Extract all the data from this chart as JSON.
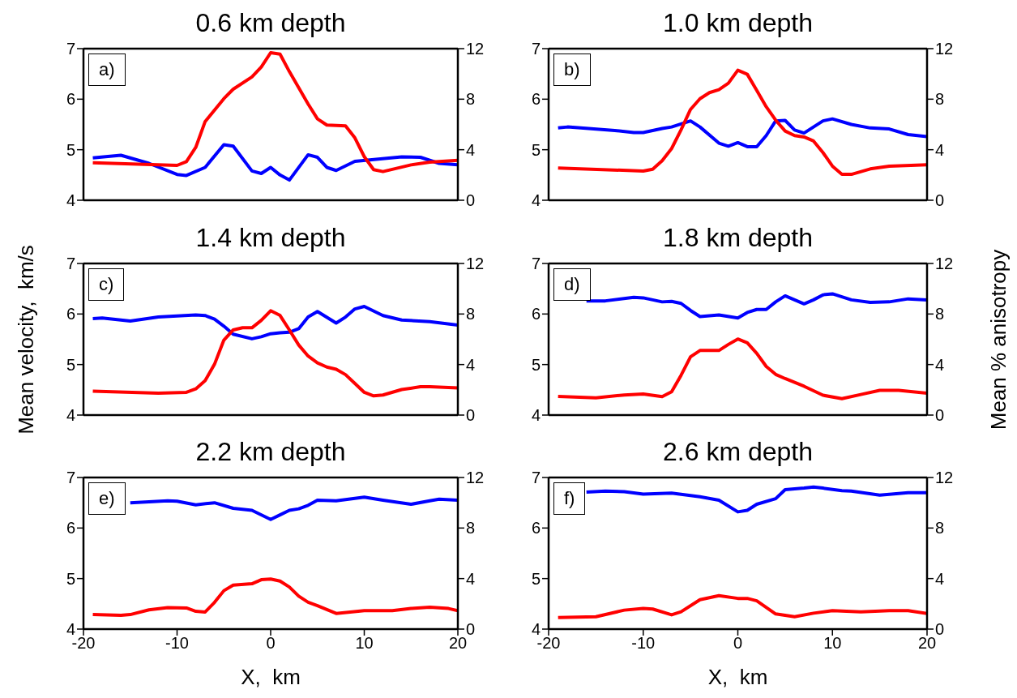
{
  "chart_data": [
    {
      "type": "line",
      "title": "0.6 km depth",
      "annotations": [
        "a)"
      ],
      "xlim": [
        -20,
        20
      ],
      "xticks": [
        -20,
        -10,
        0,
        10,
        20
      ],
      "ylim": [
        4,
        7
      ],
      "yticks": [
        4,
        5,
        6,
        7
      ],
      "y2lim": [
        0,
        12
      ],
      "y2ticks": [
        0,
        4,
        8,
        12
      ],
      "tick_labels": "y",
      "series": [
        {
          "color": "#0000ff",
          "x": [
            -19,
            -16,
            -13,
            -10,
            -9,
            -7,
            -5,
            -4,
            -2,
            -1,
            0,
            1,
            2,
            4,
            5,
            6,
            7,
            9,
            14,
            16,
            18,
            20
          ],
          "values": [
            4.84,
            4.89,
            4.73,
            4.51,
            4.49,
            4.65,
            5.1,
            5.07,
            4.58,
            4.53,
            4.65,
            4.5,
            4.4,
            4.9,
            4.85,
            4.65,
            4.59,
            4.77,
            4.86,
            4.85,
            4.73,
            4.7
          ]
        },
        {
          "color": "#ff0000",
          "axis": "y2",
          "x": [
            -19,
            -10,
            -9,
            -8,
            -7,
            -5,
            -4,
            -2,
            -1,
            0,
            1,
            2,
            4,
            5,
            6,
            8,
            9,
            10,
            11,
            12,
            15,
            17,
            20
          ],
          "values": [
            2.97,
            2.76,
            3.06,
            4.19,
            6.23,
            8.04,
            8.79,
            9.76,
            10.55,
            11.68,
            11.57,
            10.18,
            7.62,
            6.44,
            5.95,
            5.89,
            4.94,
            3.45,
            2.42,
            2.27,
            2.8,
            3.02,
            3.16
          ]
        }
      ]
    },
    {
      "type": "line",
      "title": "1.0 km depth",
      "annotations": [
        "b)"
      ],
      "xlim": [
        -20,
        20
      ],
      "xticks": [
        -20,
        -10,
        0,
        10,
        20
      ],
      "ylim": [
        4,
        7
      ],
      "yticks": [
        4,
        5,
        6,
        7
      ],
      "y2lim": [
        0,
        12
      ],
      "y2ticks": [
        0,
        4,
        8,
        12
      ],
      "tick_labels": "y",
      "series": [
        {
          "color": "#0000ff",
          "x": [
            -19,
            -18,
            -13,
            -11,
            -10,
            -8,
            -7,
            -5,
            -4,
            -2,
            -1,
            0,
            1,
            2,
            3,
            4,
            5,
            6,
            7,
            9,
            10,
            12,
            14,
            16,
            18,
            20
          ],
          "values": [
            5.43,
            5.45,
            5.38,
            5.34,
            5.34,
            5.42,
            5.45,
            5.57,
            5.45,
            5.13,
            5.07,
            5.14,
            5.06,
            5.06,
            5.28,
            5.57,
            5.58,
            5.39,
            5.33,
            5.57,
            5.61,
            5.5,
            5.43,
            5.41,
            5.3,
            5.26
          ]
        },
        {
          "color": "#ff0000",
          "axis": "y2",
          "x": [
            -19,
            -10,
            -9,
            -8,
            -7,
            -6,
            -5,
            -4,
            -3,
            -2,
            -1,
            0,
            1,
            2,
            3,
            4,
            5,
            6,
            7,
            8,
            9,
            10,
            11,
            12,
            14,
            16,
            20
          ],
          "values": [
            2.55,
            2.31,
            2.46,
            3.13,
            4.09,
            5.58,
            7.19,
            8.04,
            8.52,
            8.75,
            9.26,
            10.29,
            9.97,
            8.69,
            7.4,
            6.34,
            5.48,
            5.12,
            5.01,
            4.69,
            3.77,
            2.7,
            2.05,
            2.05,
            2.48,
            2.7,
            2.8
          ]
        }
      ]
    },
    {
      "type": "line",
      "title": "1.4 km depth",
      "annotations": [
        "c)"
      ],
      "ylabel": "Mean velocity,  km/s",
      "xlim": [
        -20,
        20
      ],
      "xticks": [
        -20,
        -10,
        0,
        10,
        20
      ],
      "ylim": [
        4,
        7
      ],
      "yticks": [
        4,
        5,
        6,
        7
      ],
      "y2lim": [
        0,
        12
      ],
      "y2ticks": [
        0,
        4,
        8,
        12
      ],
      "tick_labels": "y",
      "series": [
        {
          "color": "#0000ff",
          "x": [
            -19,
            -18,
            -15,
            -12,
            -8,
            -7,
            -6,
            -5,
            -4,
            -2,
            -1,
            0,
            1,
            2,
            3,
            4,
            5,
            7,
            8,
            9,
            10,
            12,
            14,
            17,
            20
          ],
          "values": [
            5.91,
            5.92,
            5.86,
            5.94,
            5.98,
            5.97,
            5.9,
            5.76,
            5.6,
            5.51,
            5.55,
            5.61,
            5.63,
            5.64,
            5.71,
            5.94,
            6.05,
            5.82,
            5.94,
            6.1,
            6.15,
            5.97,
            5.88,
            5.85,
            5.78
          ]
        },
        {
          "color": "#ff0000",
          "axis": "y2",
          "x": [
            -19,
            -12,
            -9,
            -8,
            -7,
            -6,
            -5,
            -4,
            -3,
            -2,
            -1,
            0,
            1,
            2,
            3,
            4,
            5,
            6,
            7,
            8,
            9,
            10,
            11,
            12,
            14,
            16,
            17,
            20
          ],
          "values": [
            1.89,
            1.74,
            1.8,
            2.07,
            2.72,
            4.02,
            5.93,
            6.74,
            6.91,
            6.91,
            7.5,
            8.26,
            7.89,
            6.74,
            5.54,
            4.67,
            4.13,
            3.8,
            3.63,
            3.2,
            2.5,
            1.8,
            1.52,
            1.59,
            2.02,
            2.24,
            2.24,
            2.15
          ]
        }
      ]
    },
    {
      "type": "line",
      "title": "1.8 km depth",
      "annotations": [
        "d)"
      ],
      "y2label": "Mean % anisotropy",
      "xlim": [
        -20,
        20
      ],
      "xticks": [
        -20,
        -10,
        0,
        10,
        20
      ],
      "ylim": [
        4,
        7
      ],
      "yticks": [
        4,
        5,
        6,
        7
      ],
      "y2lim": [
        0,
        12
      ],
      "y2ticks": [
        0,
        4,
        8,
        12
      ],
      "tick_labels": "y",
      "series": [
        {
          "color": "#0000ff",
          "x": [
            -16,
            -14,
            -11,
            -10,
            -8,
            -7,
            -6,
            -5,
            -4,
            -2,
            0,
            1,
            2,
            3,
            4,
            5,
            7,
            8,
            9,
            10,
            12,
            14,
            16,
            18,
            20
          ],
          "values": [
            6.26,
            6.26,
            6.33,
            6.32,
            6.24,
            6.25,
            6.21,
            6.07,
            5.95,
            5.98,
            5.92,
            6.03,
            6.09,
            6.09,
            6.24,
            6.36,
            6.2,
            6.28,
            6.38,
            6.4,
            6.28,
            6.23,
            6.24,
            6.3,
            6.28
          ]
        },
        {
          "color": "#ff0000",
          "axis": "y2",
          "x": [
            -19,
            -15,
            -12,
            -10,
            -8,
            -7,
            -6,
            -5,
            -4,
            -2,
            -1,
            0,
            1,
            2,
            3,
            4,
            5,
            7,
            9,
            11,
            13,
            15,
            17,
            20
          ],
          "values": [
            1.48,
            1.37,
            1.59,
            1.67,
            1.46,
            1.85,
            3.15,
            4.61,
            5.11,
            5.11,
            5.59,
            6.02,
            5.72,
            4.89,
            3.85,
            3.22,
            2.89,
            2.28,
            1.57,
            1.3,
            1.63,
            1.96,
            1.96,
            1.74
          ]
        }
      ]
    },
    {
      "type": "line",
      "title": "2.2 km depth",
      "annotations": [
        "e)"
      ],
      "xlabel": "X,  km",
      "xlim": [
        -20,
        20
      ],
      "xticks": [
        -20,
        -10,
        0,
        10,
        20
      ],
      "ylim": [
        4,
        7
      ],
      "yticks": [
        4,
        5,
        6,
        7
      ],
      "y2lim": [
        0,
        12
      ],
      "y2ticks": [
        0,
        4,
        8,
        12
      ],
      "series": [
        {
          "color": "#0000ff",
          "x": [
            -15,
            -13,
            -11,
            -10,
            -8,
            -6,
            -4,
            -2,
            0,
            1,
            2,
            3,
            4,
            5,
            7,
            10,
            12,
            15,
            17,
            18,
            20
          ],
          "values": [
            6.5,
            6.52,
            6.54,
            6.53,
            6.46,
            6.5,
            6.39,
            6.35,
            6.17,
            6.26,
            6.35,
            6.38,
            6.45,
            6.55,
            6.54,
            6.61,
            6.55,
            6.47,
            6.54,
            6.57,
            6.55
          ]
        },
        {
          "color": "#ff0000",
          "axis": "y2",
          "x": [
            -19,
            -16,
            -15,
            -13,
            -11,
            -9,
            -8,
            -7,
            -6,
            -5,
            -4,
            -2,
            -1,
            0,
            1,
            2,
            3,
            4,
            5,
            7,
            10,
            13,
            15,
            17,
            19,
            20
          ],
          "values": [
            1.15,
            1.09,
            1.15,
            1.52,
            1.7,
            1.67,
            1.41,
            1.35,
            2.11,
            3.04,
            3.48,
            3.59,
            3.91,
            3.96,
            3.8,
            3.33,
            2.61,
            2.13,
            1.85,
            1.24,
            1.46,
            1.46,
            1.63,
            1.74,
            1.63,
            1.46
          ]
        }
      ]
    },
    {
      "type": "line",
      "title": "2.6 km depth",
      "annotations": [
        "f)"
      ],
      "xlabel": "X,  km",
      "xlim": [
        -20,
        20
      ],
      "xticks": [
        -20,
        -10,
        0,
        10,
        20
      ],
      "ylim": [
        4,
        7
      ],
      "yticks": [
        4,
        5,
        6,
        7
      ],
      "y2lim": [
        0,
        12
      ],
      "y2ticks": [
        0,
        4,
        8,
        12
      ],
      "series": [
        {
          "color": "#0000ff",
          "x": [
            -16,
            -14,
            -12,
            -10,
            -7,
            -4,
            -2,
            0,
            1,
            2,
            4,
            5,
            7,
            8,
            9,
            11,
            12,
            15,
            18,
            20
          ],
          "values": [
            6.71,
            6.73,
            6.72,
            6.67,
            6.69,
            6.62,
            6.55,
            6.32,
            6.35,
            6.47,
            6.58,
            6.76,
            6.79,
            6.81,
            6.79,
            6.74,
            6.73,
            6.65,
            6.7,
            6.7
          ]
        },
        {
          "color": "#ff0000",
          "axis": "y2",
          "x": [
            -19,
            -15,
            -12,
            -10,
            -9,
            -7,
            -6,
            -4,
            -2,
            0,
            1,
            2,
            4,
            6,
            8,
            10,
            13,
            16,
            18,
            20
          ],
          "values": [
            0.91,
            0.98,
            1.5,
            1.63,
            1.59,
            1.13,
            1.37,
            2.33,
            2.65,
            2.43,
            2.43,
            2.24,
            1.2,
            0.98,
            1.26,
            1.46,
            1.37,
            1.46,
            1.46,
            1.24
          ]
        }
      ]
    }
  ]
}
